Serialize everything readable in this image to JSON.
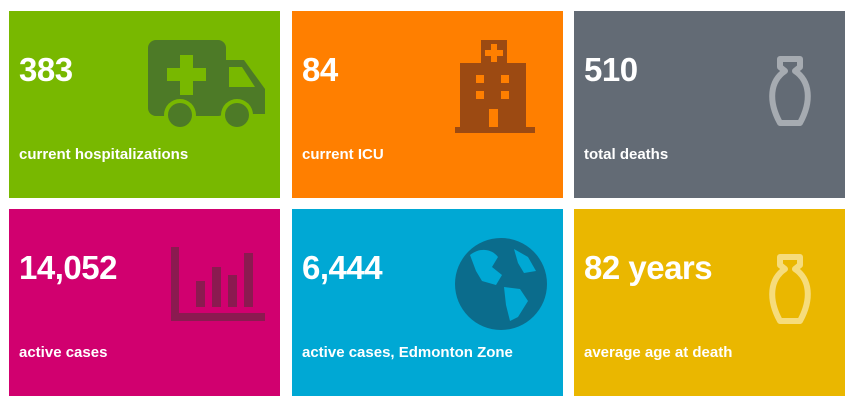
{
  "tiles": [
    {
      "value": "383",
      "label": "current hospitalizations"
    },
    {
      "value": "84",
      "label": "current ICU"
    },
    {
      "value": "510",
      "label": "total deaths"
    },
    {
      "value": "14,052",
      "label": "active cases"
    },
    {
      "value": "6,444",
      "label": "active cases, Edmonton Zone"
    },
    {
      "value": "82 years",
      "label": "average age at death"
    }
  ]
}
